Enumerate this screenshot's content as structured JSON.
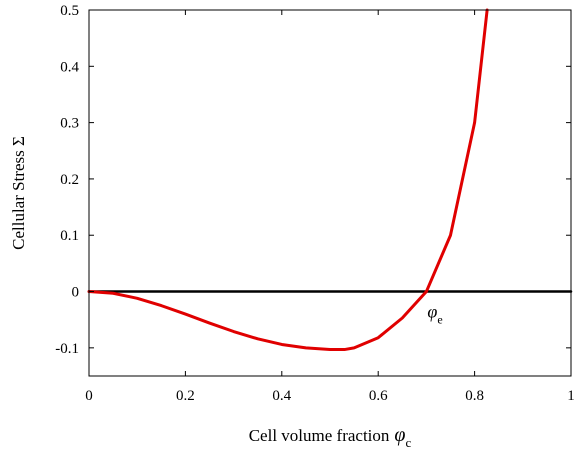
{
  "chart_data": {
    "type": "line",
    "xlabel": "Cell volume fraction",
    "xlabel_symbol": "φ",
    "xlabel_sub": "c",
    "ylabel": "Cellular Stress Σ",
    "xlim": [
      0,
      1
    ],
    "ylim": [
      -0.15,
      0.5
    ],
    "xticks": [
      0,
      0.2,
      0.4,
      0.6,
      0.8,
      1
    ],
    "xtick_labels": [
      "0",
      "0.2",
      "0.4",
      "0.6",
      "0.8",
      "1"
    ],
    "yticks": [
      -0.1,
      0,
      0.1,
      0.2,
      0.3,
      0.4,
      0.5
    ],
    "ytick_labels": [
      "-0.1",
      "0",
      "0.1",
      "0.2",
      "0.3",
      "0.4",
      "0.5"
    ],
    "grid": false,
    "series": [
      {
        "color": "#e00000",
        "x": [
          0,
          0.05,
          0.1,
          0.15,
          0.2,
          0.25,
          0.3,
          0.35,
          0.4,
          0.45,
          0.5,
          0.53,
          0.55,
          0.6,
          0.65,
          0.7,
          0.75,
          0.8,
          0.826
        ],
        "y": [
          0,
          -0.003,
          -0.012,
          -0.025,
          -0.04,
          -0.056,
          -0.071,
          -0.084,
          -0.094,
          -0.1,
          -0.103,
          -0.103,
          -0.1,
          -0.082,
          -0.047,
          0.0,
          0.1,
          0.3,
          0.5
        ]
      },
      {
        "color": "#000000",
        "x": [
          0,
          1
        ],
        "y": [
          0,
          0
        ]
      }
    ],
    "annotations": [
      {
        "symbol": "φ",
        "sub": "e",
        "x": 0.7,
        "y": 0
      }
    ]
  }
}
